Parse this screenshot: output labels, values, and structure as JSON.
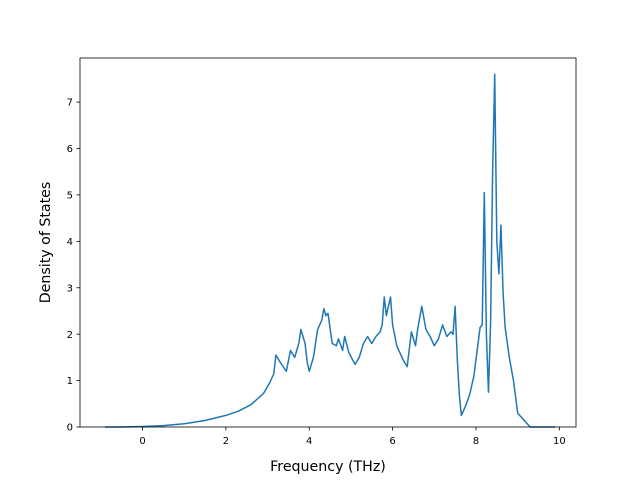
{
  "chart_data": {
    "type": "line",
    "title": "",
    "xlabel": "Frequency (THz)",
    "ylabel": "Density of States",
    "xlim": [
      -1.5,
      10.4
    ],
    "ylim": [
      0,
      7.95
    ],
    "xticks": [
      0,
      2,
      4,
      6,
      8,
      10
    ],
    "yticks": [
      0,
      1,
      2,
      3,
      4,
      5,
      6,
      7
    ],
    "grid": false,
    "legend": "none",
    "series": [
      {
        "color": "#1f77b4",
        "x": [
          -0.9,
          -0.5,
          0.0,
          0.5,
          1.0,
          1.5,
          2.0,
          2.3,
          2.6,
          2.9,
          3.05,
          3.15,
          3.2,
          3.3,
          3.45,
          3.55,
          3.65,
          3.75,
          3.8,
          3.9,
          3.95,
          4.0,
          4.1,
          4.2,
          4.3,
          4.35,
          4.4,
          4.45,
          4.55,
          4.65,
          4.7,
          4.8,
          4.85,
          4.95,
          5.1,
          5.2,
          5.3,
          5.4,
          5.5,
          5.6,
          5.7,
          5.75,
          5.8,
          5.85,
          5.95,
          6.0,
          6.1,
          6.2,
          6.25,
          6.35,
          6.45,
          6.55,
          6.6,
          6.7,
          6.8,
          6.9,
          7.0,
          7.1,
          7.2,
          7.3,
          7.4,
          7.45,
          7.5,
          7.55,
          7.6,
          7.65,
          7.75,
          7.85,
          7.95,
          8.1,
          8.15,
          8.2,
          8.25,
          8.3,
          8.35,
          8.4,
          8.45,
          8.5,
          8.55,
          8.6,
          8.65,
          8.7,
          8.8,
          8.9,
          9.0,
          9.3,
          9.9
        ],
        "y": [
          0,
          0,
          0.01,
          0.03,
          0.07,
          0.14,
          0.25,
          0.34,
          0.48,
          0.72,
          0.95,
          1.15,
          1.55,
          1.4,
          1.2,
          1.65,
          1.5,
          1.8,
          2.1,
          1.8,
          1.4,
          1.2,
          1.5,
          2.1,
          2.3,
          2.55,
          2.4,
          2.45,
          1.8,
          1.75,
          1.9,
          1.65,
          1.95,
          1.6,
          1.35,
          1.5,
          1.8,
          1.95,
          1.8,
          1.95,
          2.05,
          2.2,
          2.8,
          2.4,
          2.8,
          2.2,
          1.75,
          1.55,
          1.45,
          1.3,
          2.05,
          1.75,
          2.1,
          2.6,
          2.1,
          1.95,
          1.75,
          1.9,
          2.2,
          1.95,
          2.05,
          2.0,
          2.6,
          1.5,
          0.7,
          0.25,
          0.45,
          0.7,
          1.1,
          2.15,
          2.2,
          5.05,
          2.0,
          0.75,
          2.2,
          5.5,
          7.6,
          4.0,
          3.3,
          4.35,
          2.9,
          2.15,
          1.5,
          1.0,
          0.3,
          0.0,
          0.0
        ]
      }
    ]
  }
}
